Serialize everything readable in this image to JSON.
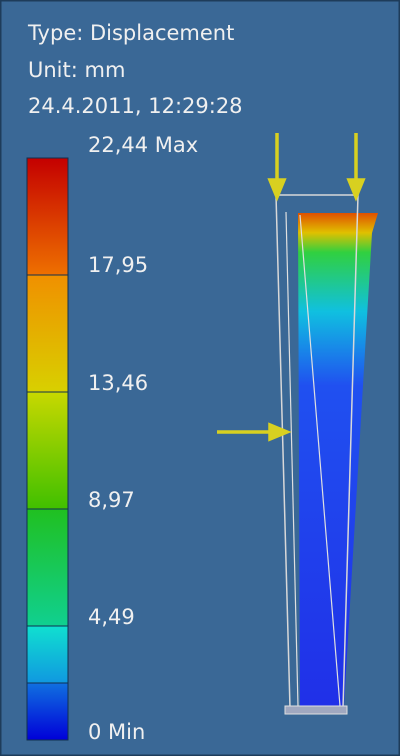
{
  "header": {
    "type": "Type: Displacement",
    "unit": "Unit: mm",
    "timestamp": "24.4.2011, 12:29:28"
  },
  "legend": {
    "labels": [
      "22,44 Max",
      "17,95",
      "13,46",
      "8,97",
      "4,49",
      "0 Min"
    ]
  }
}
